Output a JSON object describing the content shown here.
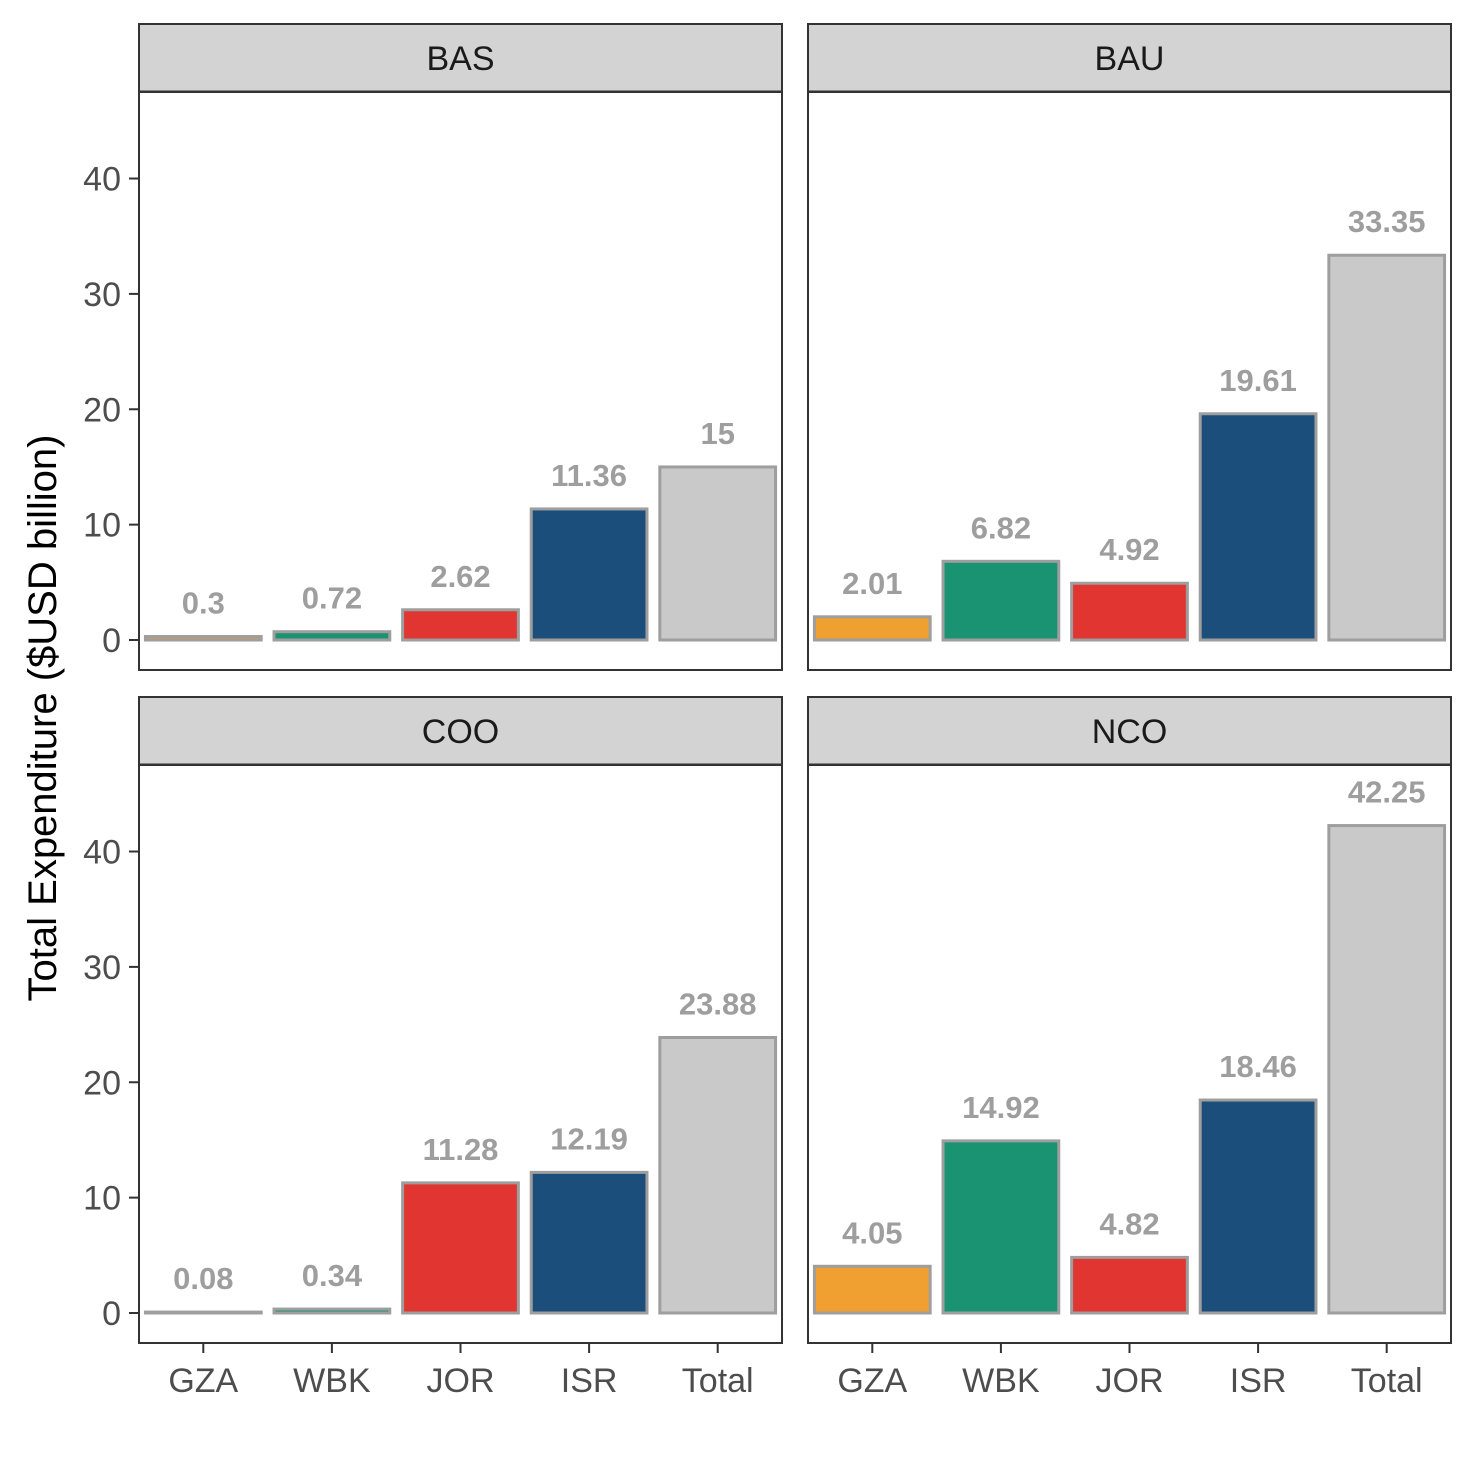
{
  "chart_data": {
    "type": "bar",
    "ylabel": "Total Expenditure ($USD billion)",
    "xlabel": "",
    "ylim": [
      -2.6,
      47.5
    ],
    "yticks": [
      0,
      10,
      20,
      30,
      40
    ],
    "categories": [
      "GZA",
      "WBK",
      "JOR",
      "ISR",
      "Total"
    ],
    "colors": {
      "GZA": "#f0a030",
      "WBK": "#1a9373",
      "JOR": "#e03530",
      "ISR": "#1c4e7b",
      "Total": "#c9c9c9"
    },
    "bar_outline": "#9e9e9e",
    "strip_fill": "#d3d3d3",
    "panels": [
      {
        "name": "BAS",
        "values": [
          0.3,
          0.72,
          2.62,
          11.36,
          15
        ],
        "labels": [
          "0.3",
          "0.72",
          "2.62",
          "11.36",
          "15"
        ]
      },
      {
        "name": "BAU",
        "values": [
          2.01,
          6.82,
          4.92,
          19.61,
          33.35
        ],
        "labels": [
          "2.01",
          "6.82",
          "4.92",
          "19.61",
          "33.35"
        ]
      },
      {
        "name": "COO",
        "values": [
          0.08,
          0.34,
          11.28,
          12.19,
          23.88
        ],
        "labels": [
          "0.08",
          "0.34",
          "11.28",
          "12.19",
          "23.88"
        ]
      },
      {
        "name": "NCO",
        "values": [
          4.05,
          14.92,
          4.82,
          18.46,
          42.25
        ],
        "labels": [
          "4.05",
          "14.92",
          "4.82",
          "18.46",
          "42.25"
        ]
      }
    ]
  }
}
